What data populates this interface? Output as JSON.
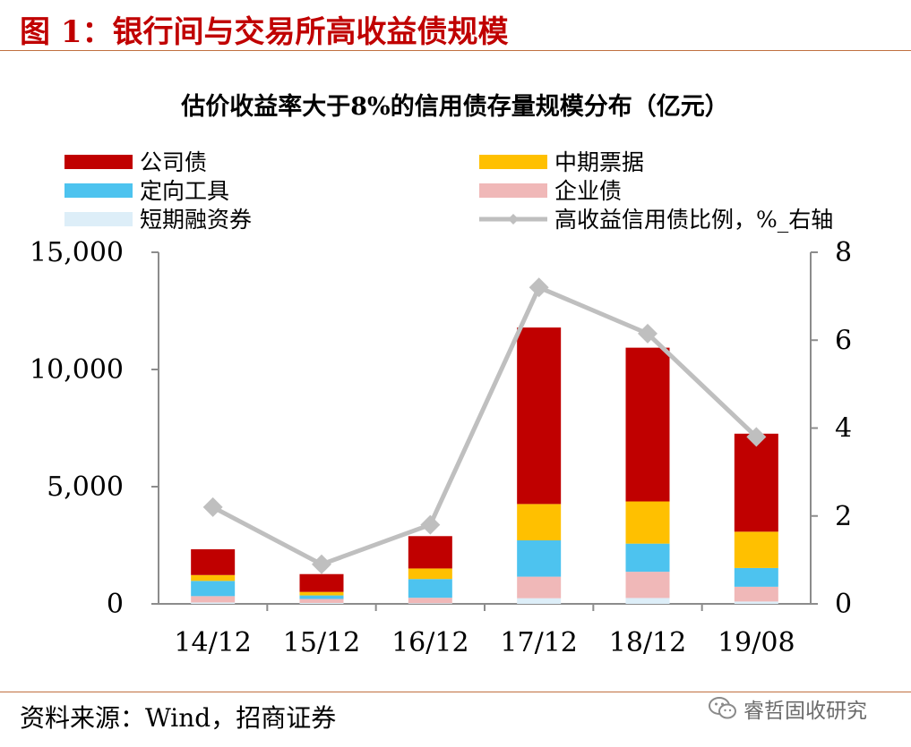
{
  "figure": {
    "title": "图 1：银行间与交易所高收益债规模",
    "source": "资料来源：Wind，招商证券",
    "watermark": "睿哲固收研究",
    "watermark_icon": "wechat-icon"
  },
  "chart_data": {
    "type": "bar",
    "stacked": true,
    "title": "估价收益率大于8%的信用债存量规模分布（亿元）",
    "categories": [
      "14/12",
      "15/12",
      "16/12",
      "17/12",
      "18/12",
      "19/08"
    ],
    "yticks_left": [
      "15,000",
      "10,000",
      "5,000",
      "0"
    ],
    "yticks_right": [
      "8",
      "6",
      "4",
      "2",
      "0"
    ],
    "ylim_left": [
      0,
      15000
    ],
    "ylim_right": [
      0,
      8
    ],
    "grid": false,
    "legend_position": "top",
    "series": [
      {
        "name": "短期融资券",
        "values": [
          60,
          40,
          30,
          240,
          250,
          100
        ],
        "color": "#ddeef8"
      },
      {
        "name": "企业债",
        "values": [
          270,
          170,
          230,
          920,
          1120,
          630
        ],
        "color": "#f0b8b8"
      },
      {
        "name": "定向工具",
        "values": [
          650,
          150,
          800,
          1550,
          1200,
          800
        ],
        "color": "#4dc3ef"
      },
      {
        "name": "中期票据",
        "values": [
          250,
          150,
          450,
          1550,
          1800,
          1550
        ],
        "color": "#ffc000"
      },
      {
        "name": "公司债",
        "values": [
          1100,
          760,
          1380,
          7530,
          6560,
          4180
        ],
        "color": "#c00000"
      },
      {
        "name": "高收益信用债比例，%_右轴",
        "type": "line",
        "axis": "right",
        "values": [
          2.2,
          0.9,
          1.8,
          7.2,
          6.15,
          3.8
        ],
        "color": "#bfbfbf"
      }
    ],
    "legend": [
      {
        "label": "公司债",
        "marker": "box",
        "color": "#c00000"
      },
      {
        "label": "中期票据",
        "marker": "box",
        "color": "#ffc000"
      },
      {
        "label": "定向工具",
        "marker": "box",
        "color": "#4dc3ef"
      },
      {
        "label": "企业债",
        "marker": "box",
        "color": "#f0b8b8"
      },
      {
        "label": "短期融资券",
        "marker": "box",
        "color": "#ddeef8"
      },
      {
        "label": "高收益信用债比例，%_右轴",
        "marker": "line",
        "color": "#bfbfbf"
      }
    ]
  }
}
